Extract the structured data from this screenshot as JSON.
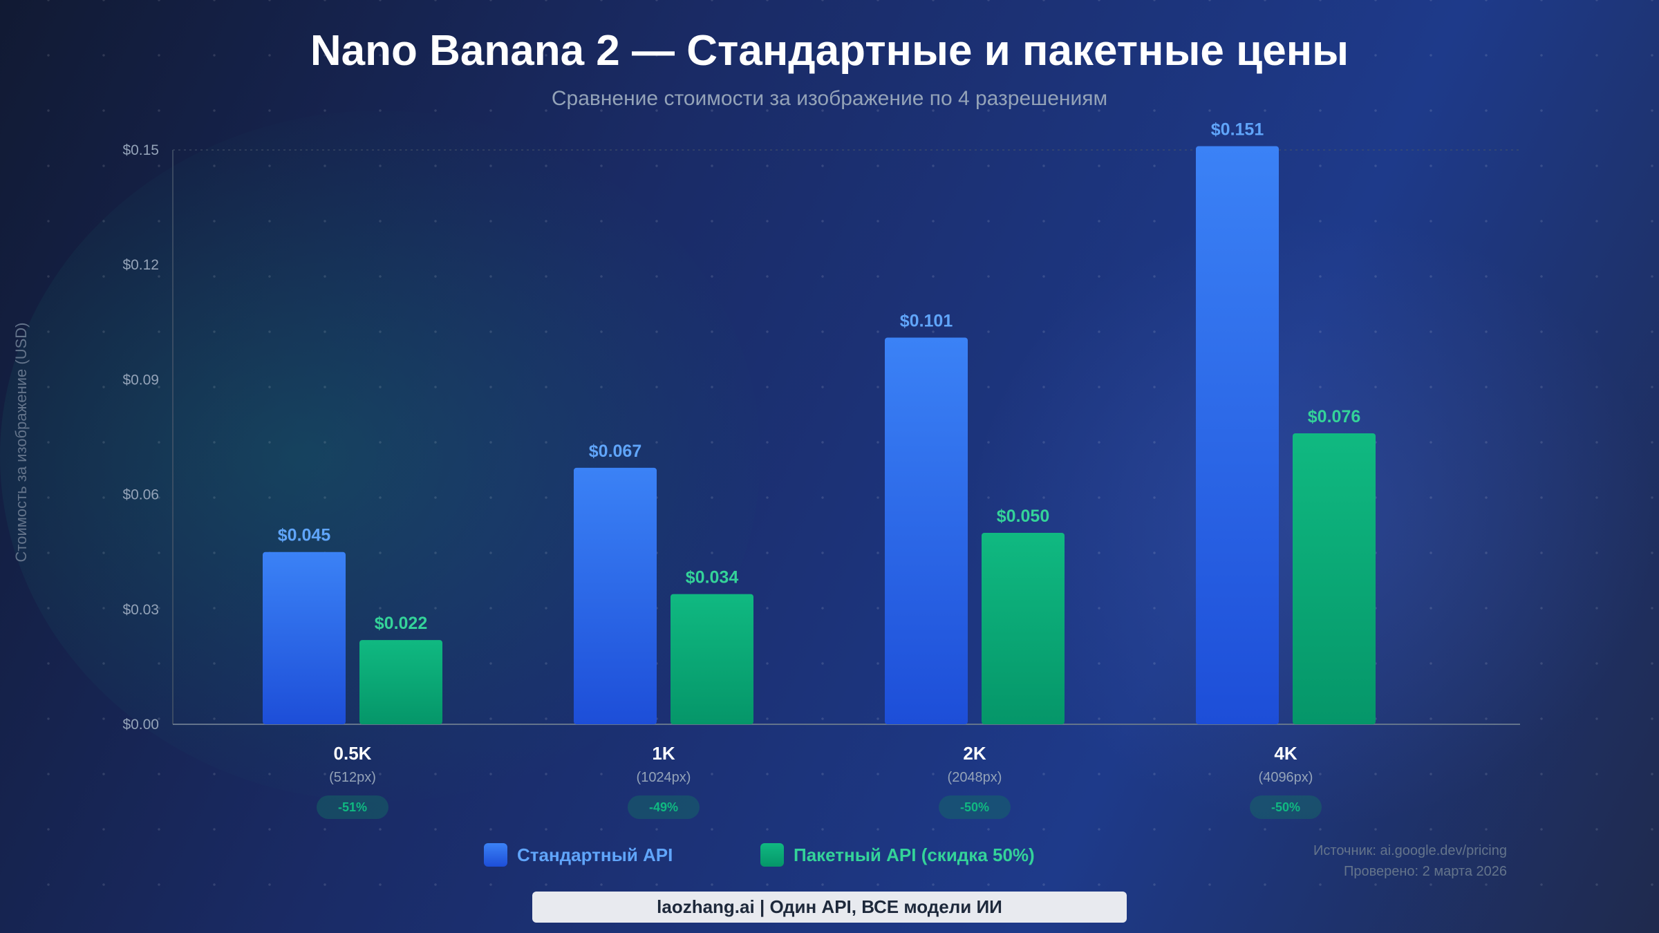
{
  "title": "Nano Banana 2 — Стандартные и пакетные цены",
  "subtitle": "Сравнение стоимости за изображение по 4 разрешениям",
  "colors": {
    "standard": "#3b82f6",
    "batch": "#10b981",
    "standard_label": "#60a5fa",
    "batch_label": "#34d399"
  },
  "chart_data": {
    "type": "bar",
    "title": "Nano Banana 2 — Стандартные и пакетные цены",
    "ylabel": "Стоимость за изображение (USD)",
    "xlabel": "",
    "ylim": [
      0,
      0.15
    ],
    "yticks": [
      "$0.00",
      "$0.03",
      "$0.06",
      "$0.09",
      "$0.12",
      "$0.15"
    ],
    "ytick_values": [
      0,
      0.03,
      0.06,
      0.09,
      0.12,
      0.15
    ],
    "categories": [
      "0.5K",
      "1K",
      "2K",
      "4K"
    ],
    "category_sub": [
      "(512px)",
      "(1024px)",
      "(2048px)",
      "(4096px)"
    ],
    "discounts": [
      "-51%",
      "-49%",
      "-50%",
      "-50%"
    ],
    "series": [
      {
        "name": "Стандартный API",
        "values": [
          0.045,
          0.067,
          0.101,
          0.151
        ],
        "labels": [
          "$0.045",
          "$0.067",
          "$0.101",
          "$0.151"
        ]
      },
      {
        "name": "Пакетный API (скидка 50%)",
        "values": [
          0.022,
          0.034,
          0.05,
          0.076
        ],
        "labels": [
          "$0.022",
          "$0.034",
          "$0.050",
          "$0.076"
        ]
      }
    ],
    "legend": "bottom-center",
    "grid": false
  },
  "source": "Источник: ai.google.dev/pricing",
  "checked": "Проверено: 2 марта 2026",
  "footer": "laozhang.ai | Один API, ВСЕ модели ИИ"
}
